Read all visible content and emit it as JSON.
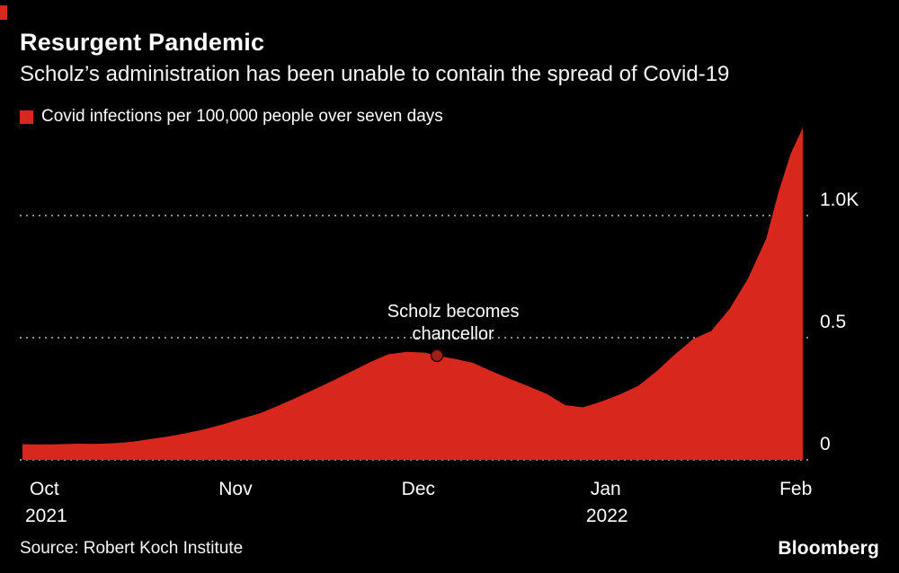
{
  "header": {
    "title": "Resurgent Pandemic",
    "subtitle": "Scholz’s administration has been unable to contain the spread of Covid-19"
  },
  "legend": {
    "label": "Covid infections per 100,000 people over seven days",
    "color": "#d8281e"
  },
  "chart_data": {
    "type": "area",
    "title": "Resurgent Pandemic",
    "series_name": "Covid infections per 100,000 people over seven days",
    "color": "#d8281e",
    "background": "#000000",
    "gridline_color": "#8c8c8c",
    "grid": "dotted-horizontal",
    "legend_position": "top-left",
    "ylabel": "",
    "xlabel": "",
    "ylim": [
      0,
      1400
    ],
    "yticks": [
      {
        "value": 0,
        "label": "0"
      },
      {
        "value": 500,
        "label": "0.5"
      },
      {
        "value": 1000,
        "label": "1.0K"
      }
    ],
    "xticks": [
      {
        "date": "2021-10-01",
        "label": "Oct",
        "sublabel": "2021"
      },
      {
        "date": "2021-11-01",
        "label": "Nov",
        "sublabel": ""
      },
      {
        "date": "2021-12-01",
        "label": "Dec",
        "sublabel": ""
      },
      {
        "date": "2022-01-01",
        "label": "Jan",
        "sublabel": "2022"
      },
      {
        "date": "2022-02-01",
        "label": "Feb",
        "sublabel": ""
      }
    ],
    "points": [
      [
        "2021-10-01",
        64
      ],
      [
        "2021-10-04",
        63
      ],
      [
        "2021-10-07",
        64
      ],
      [
        "2021-10-10",
        66
      ],
      [
        "2021-10-13",
        65
      ],
      [
        "2021-10-16",
        68
      ],
      [
        "2021-10-19",
        74
      ],
      [
        "2021-10-22",
        85
      ],
      [
        "2021-10-25",
        96
      ],
      [
        "2021-10-28",
        110
      ],
      [
        "2021-10-31",
        126
      ],
      [
        "2021-11-03",
        146
      ],
      [
        "2021-11-06",
        169
      ],
      [
        "2021-11-09",
        191
      ],
      [
        "2021-11-12",
        222
      ],
      [
        "2021-11-15",
        255
      ],
      [
        "2021-11-18",
        290
      ],
      [
        "2021-11-21",
        325
      ],
      [
        "2021-11-24",
        362
      ],
      [
        "2021-11-27",
        400
      ],
      [
        "2021-11-30",
        432
      ],
      [
        "2021-12-03",
        442
      ],
      [
        "2021-12-06",
        439
      ],
      [
        "2021-12-08",
        427
      ],
      [
        "2021-12-11",
        413
      ],
      [
        "2021-12-14",
        396
      ],
      [
        "2021-12-17",
        362
      ],
      [
        "2021-12-20",
        331
      ],
      [
        "2021-12-23",
        301
      ],
      [
        "2021-12-26",
        270
      ],
      [
        "2021-12-29",
        224
      ],
      [
        "2022-01-01",
        215
      ],
      [
        "2022-01-04",
        239
      ],
      [
        "2022-01-07",
        268
      ],
      [
        "2022-01-10",
        303
      ],
      [
        "2022-01-13",
        362
      ],
      [
        "2022-01-16",
        431
      ],
      [
        "2022-01-19",
        494
      ],
      [
        "2022-01-22",
        528
      ],
      [
        "2022-01-25",
        618
      ],
      [
        "2022-01-28",
        742
      ],
      [
        "2022-01-31",
        905
      ],
      [
        "2022-02-02",
        1095
      ],
      [
        "2022-02-04",
        1252
      ],
      [
        "2022-02-06",
        1360
      ]
    ],
    "annotation": {
      "text_lines": [
        "Scholz becomes",
        "chancellor"
      ],
      "date": "2021-12-08",
      "value": 427,
      "marker_color": "#a32017"
    }
  },
  "footer": {
    "source": "Source: Robert Koch Institute",
    "brand": "Bloomberg"
  }
}
